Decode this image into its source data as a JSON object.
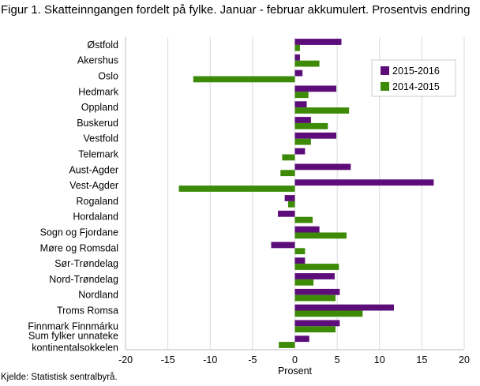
{
  "title": "Figur 1. Skatteinngangen fordelt på fylke. Januar - februar akkumulert. Prosentvis endring",
  "source": "Kjelde: Statistisk sentralbyrå.",
  "chart_data": {
    "type": "bar",
    "orientation": "horizontal",
    "title": "Figur 1. Skatteinngangen fordelt på fylke. Januar - februar akkumulert. Prosentvis endring",
    "xlabel": "Prosent",
    "ylabel": "",
    "xlim": [
      -20,
      20
    ],
    "xticks": [
      -20,
      -15,
      -10,
      -5,
      0,
      5,
      10,
      15,
      20
    ],
    "grid": "vertical",
    "legend_position": "top-right",
    "categories": [
      "Østfold",
      "Akershus",
      "Oslo",
      "Hedmark",
      "Oppland",
      "Buskerud",
      "Vestfold",
      "Telemark",
      "Aust-Agder",
      "Vest-Agder",
      "Rogaland",
      "Hordaland",
      "Sogn og Fjordane",
      "Møre og Romsdal",
      "Sør-Trøndelag",
      "Nord-Trøndelag",
      "Nordland",
      "Troms Romsa",
      "Finnmark Finnmárku",
      "Sum fylker unnateke kontinentalsokkelen"
    ],
    "category_lines": [
      [
        "Østfold"
      ],
      [
        "Akershus"
      ],
      [
        "Oslo"
      ],
      [
        "Hedmark"
      ],
      [
        "Oppland"
      ],
      [
        "Buskerud"
      ],
      [
        "Vestfold"
      ],
      [
        "Telemark"
      ],
      [
        "Aust-Agder"
      ],
      [
        "Vest-Agder"
      ],
      [
        "Rogaland"
      ],
      [
        "Hordaland"
      ],
      [
        "Sogn og Fjordane"
      ],
      [
        "Møre og Romsdal"
      ],
      [
        "Sør-Trøndelag"
      ],
      [
        "Nord-Trøndelag"
      ],
      [
        "Nordland"
      ],
      [
        "Troms Romsa"
      ],
      [
        "Finnmark Finnmárku"
      ],
      [
        "Sum fylker unnateke",
        "kontinentalsokkelen"
      ]
    ],
    "series": [
      {
        "name": "2015-2016",
        "color": "#5c0d7a",
        "values": [
          5.5,
          0.6,
          0.9,
          4.9,
          1.4,
          1.9,
          4.9,
          1.2,
          6.6,
          16.4,
          -1.2,
          -2.0,
          2.9,
          -2.8,
          1.2,
          4.7,
          5.3,
          11.7,
          5.3,
          1.7
        ]
      },
      {
        "name": "2014-2015",
        "color": "#3d8a07",
        "values": [
          0.6,
          2.9,
          -12.0,
          1.6,
          6.4,
          3.9,
          1.9,
          -1.5,
          -1.7,
          -13.7,
          -0.8,
          2.1,
          6.1,
          1.2,
          5.2,
          2.2,
          4.8,
          8.0,
          4.8,
          -1.9
        ]
      }
    ]
  }
}
